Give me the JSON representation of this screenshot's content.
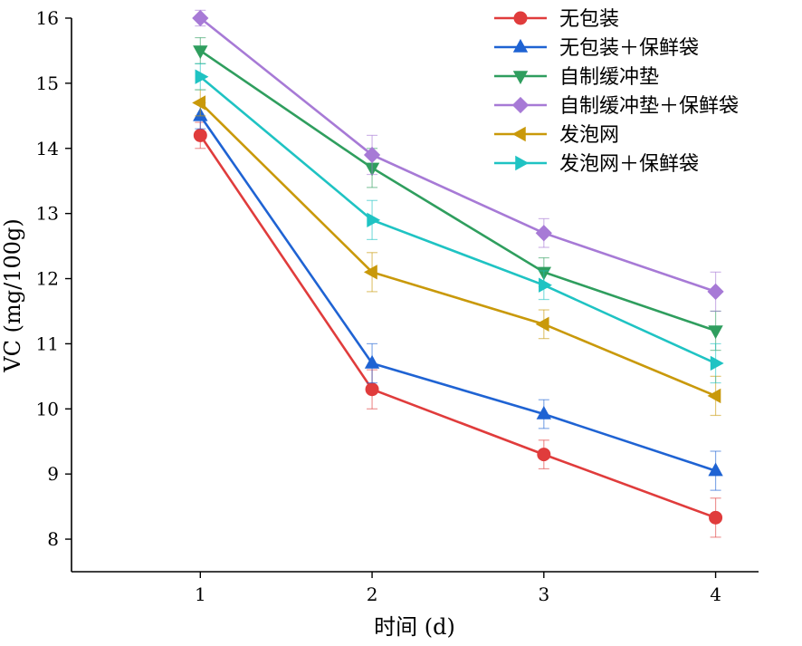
{
  "chart_data": {
    "type": "line",
    "xlabel": "时间 (d)",
    "ylabel": "VC (mg/100g)",
    "xlim": [
      0.25,
      4.25
    ],
    "ylim": [
      7.5,
      16
    ],
    "xticks": [
      "1",
      "2",
      "3",
      "4"
    ],
    "yticks": [
      "8",
      "9",
      "10",
      "11",
      "12",
      "13",
      "14",
      "15",
      "16"
    ],
    "x": [
      1,
      2,
      3,
      4
    ],
    "legend_position": "top-right",
    "series": [
      {
        "name": "无包装",
        "color": "#e03c3c",
        "marker": "circle",
        "values": [
          14.2,
          10.3,
          9.3,
          8.33
        ],
        "errors": [
          0.2,
          0.3,
          0.22,
          0.3
        ]
      },
      {
        "name": "无包装＋保鲜袋",
        "color": "#1f63d3",
        "marker": "triangle-up",
        "values": [
          14.5,
          10.7,
          9.92,
          9.05
        ],
        "errors": [
          0.2,
          0.3,
          0.22,
          0.3
        ]
      },
      {
        "name": "自制缓冲垫",
        "color": "#2f9e5e",
        "marker": "triangle-down",
        "values": [
          15.5,
          13.7,
          12.1,
          11.2
        ],
        "errors": [
          0.2,
          0.3,
          0.22,
          0.3
        ]
      },
      {
        "name": "自制缓冲垫＋保鲜袋",
        "color": "#a77ad6",
        "marker": "diamond",
        "values": [
          16.0,
          13.9,
          12.7,
          11.8
        ],
        "errors": [
          0.12,
          0.3,
          0.22,
          0.3
        ]
      },
      {
        "name": "发泡网",
        "color": "#c9990a",
        "marker": "triangle-left",
        "values": [
          14.7,
          12.1,
          11.3,
          10.2
        ],
        "errors": [
          0.2,
          0.3,
          0.22,
          0.3
        ]
      },
      {
        "name": "发泡网＋保鲜袋",
        "color": "#1fc3c3",
        "marker": "triangle-right",
        "values": [
          15.1,
          12.9,
          11.9,
          10.7
        ],
        "errors": [
          0.2,
          0.3,
          0.22,
          0.3
        ]
      }
    ]
  }
}
